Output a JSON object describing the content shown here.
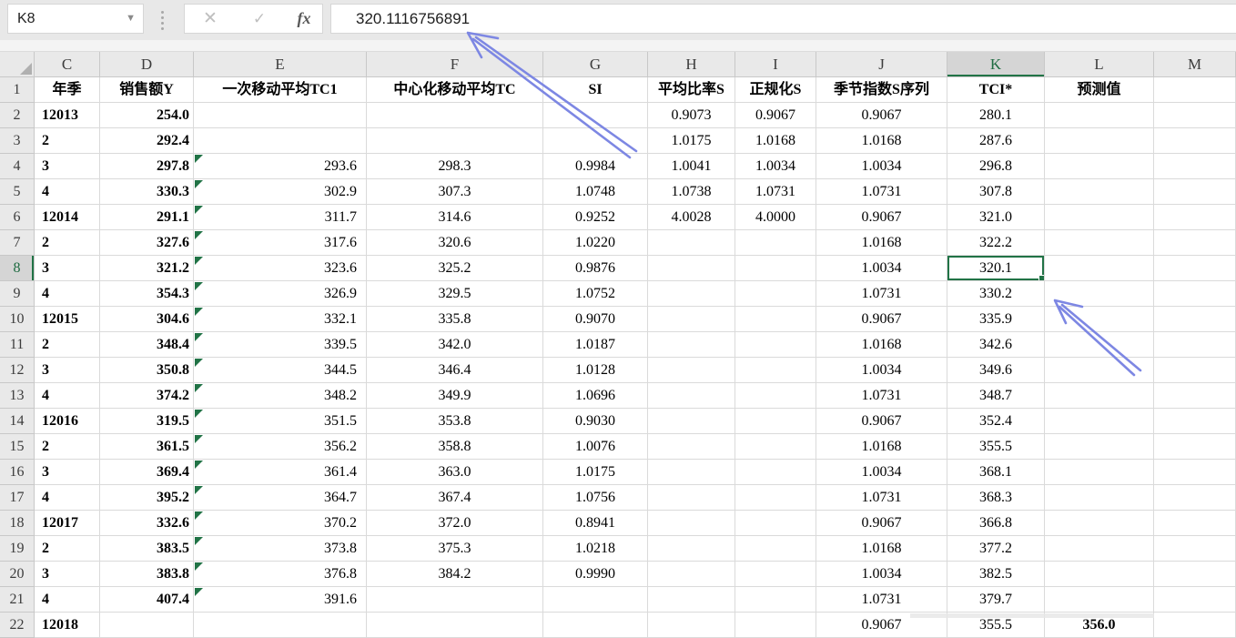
{
  "toolbar": {
    "name_box": "K8",
    "cancel_glyph": "✕",
    "enter_glyph": "✓",
    "fx_label": "fx",
    "formula": "320.1116756891"
  },
  "sheet": {
    "selected_cell": "K8",
    "selected_column": "K",
    "selected_row": 8,
    "columns": [
      "C",
      "D",
      "E",
      "F",
      "G",
      "H",
      "I",
      "J",
      "K",
      "L",
      "M"
    ],
    "header_row": {
      "C": "年季",
      "D": "销售额Y",
      "E": "一次移动平均TC1",
      "F": "中心化移动平均TC",
      "G": "SI",
      "H": "平均比率S",
      "I": "正规化S",
      "J": "季节指数S序列",
      "K": "TCI*",
      "L": "预测值",
      "M": ""
    },
    "rows": [
      {
        "n": 2,
        "C": "12013",
        "D": "254.0",
        "E": "",
        "F": "",
        "G": "",
        "H": "0.9073",
        "I": "0.9067",
        "J": "0.9067",
        "K": "280.1",
        "L": ""
      },
      {
        "n": 3,
        "C": "2",
        "D": "292.4",
        "E": "",
        "F": "",
        "G": "",
        "H": "1.0175",
        "I": "1.0168",
        "J": "1.0168",
        "K": "287.6",
        "L": ""
      },
      {
        "n": 4,
        "C": "3",
        "D": "297.8",
        "E": "293.6",
        "F": "298.3",
        "G": "0.9984",
        "H": "1.0041",
        "I": "1.0034",
        "J": "1.0034",
        "K": "296.8",
        "L": ""
      },
      {
        "n": 5,
        "C": "4",
        "D": "330.3",
        "E": "302.9",
        "F": "307.3",
        "G": "1.0748",
        "H": "1.0738",
        "I": "1.0731",
        "J": "1.0731",
        "K": "307.8",
        "L": ""
      },
      {
        "n": 6,
        "C": "12014",
        "D": "291.1",
        "E": "311.7",
        "F": "314.6",
        "G": "0.9252",
        "H": "4.0028",
        "I": "4.0000",
        "J": "0.9067",
        "K": "321.0",
        "L": ""
      },
      {
        "n": 7,
        "C": "2",
        "D": "327.6",
        "E": "317.6",
        "F": "320.6",
        "G": "1.0220",
        "H": "",
        "I": "",
        "J": "1.0168",
        "K": "322.2",
        "L": ""
      },
      {
        "n": 8,
        "C": "3",
        "D": "321.2",
        "E": "323.6",
        "F": "325.2",
        "G": "0.9876",
        "H": "",
        "I": "",
        "J": "1.0034",
        "K": "320.1",
        "L": ""
      },
      {
        "n": 9,
        "C": "4",
        "D": "354.3",
        "E": "326.9",
        "F": "329.5",
        "G": "1.0752",
        "H": "",
        "I": "",
        "J": "1.0731",
        "K": "330.2",
        "L": ""
      },
      {
        "n": 10,
        "C": "12015",
        "D": "304.6",
        "E": "332.1",
        "F": "335.8",
        "G": "0.9070",
        "H": "",
        "I": "",
        "J": "0.9067",
        "K": "335.9",
        "L": ""
      },
      {
        "n": 11,
        "C": "2",
        "D": "348.4",
        "E": "339.5",
        "F": "342.0",
        "G": "1.0187",
        "H": "",
        "I": "",
        "J": "1.0168",
        "K": "342.6",
        "L": ""
      },
      {
        "n": 12,
        "C": "3",
        "D": "350.8",
        "E": "344.5",
        "F": "346.4",
        "G": "1.0128",
        "H": "",
        "I": "",
        "J": "1.0034",
        "K": "349.6",
        "L": ""
      },
      {
        "n": 13,
        "C": "4",
        "D": "374.2",
        "E": "348.2",
        "F": "349.9",
        "G": "1.0696",
        "H": "",
        "I": "",
        "J": "1.0731",
        "K": "348.7",
        "L": ""
      },
      {
        "n": 14,
        "C": "12016",
        "D": "319.5",
        "E": "351.5",
        "F": "353.8",
        "G": "0.9030",
        "H": "",
        "I": "",
        "J": "0.9067",
        "K": "352.4",
        "L": ""
      },
      {
        "n": 15,
        "C": "2",
        "D": "361.5",
        "E": "356.2",
        "F": "358.8",
        "G": "1.0076",
        "H": "",
        "I": "",
        "J": "1.0168",
        "K": "355.5",
        "L": ""
      },
      {
        "n": 16,
        "C": "3",
        "D": "369.4",
        "E": "361.4",
        "F": "363.0",
        "G": "1.0175",
        "H": "",
        "I": "",
        "J": "1.0034",
        "K": "368.1",
        "L": ""
      },
      {
        "n": 17,
        "C": "4",
        "D": "395.2",
        "E": "364.7",
        "F": "367.4",
        "G": "1.0756",
        "H": "",
        "I": "",
        "J": "1.0731",
        "K": "368.3",
        "L": ""
      },
      {
        "n": 18,
        "C": "12017",
        "D": "332.6",
        "E": "370.2",
        "F": "372.0",
        "G": "0.8941",
        "H": "",
        "I": "",
        "J": "0.9067",
        "K": "366.8",
        "L": ""
      },
      {
        "n": 19,
        "C": "2",
        "D": "383.5",
        "E": "373.8",
        "F": "375.3",
        "G": "1.0218",
        "H": "",
        "I": "",
        "J": "1.0168",
        "K": "377.2",
        "L": ""
      },
      {
        "n": 20,
        "C": "3",
        "D": "383.8",
        "E": "376.8",
        "F": "384.2",
        "G": "0.9990",
        "H": "",
        "I": "",
        "J": "1.0034",
        "K": "382.5",
        "L": ""
      },
      {
        "n": 21,
        "C": "4",
        "D": "407.4",
        "E": "391.6",
        "F": "",
        "G": "",
        "H": "",
        "I": "",
        "J": "1.0731",
        "K": "379.7",
        "L": ""
      },
      {
        "n": 22,
        "C": "12018",
        "D": "",
        "E": "",
        "F": "",
        "G": "",
        "H": "",
        "I": "",
        "J": "0.9067",
        "K": "355.5",
        "L": "356.0"
      }
    ],
    "error_flag_rows": [
      4,
      5,
      6,
      7,
      8,
      9,
      10,
      11,
      12,
      13,
      14,
      15,
      16,
      17,
      18,
      19,
      20,
      21
    ]
  },
  "annotations": {
    "arrow_color": "#7d87e3",
    "accent_green": "#217346"
  }
}
